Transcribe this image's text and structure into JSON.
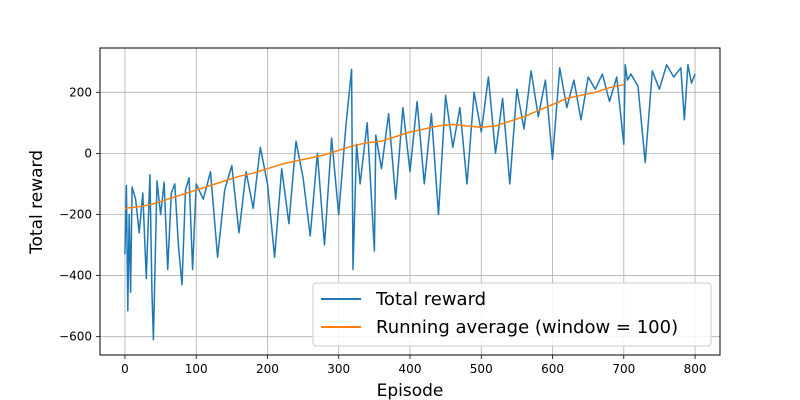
{
  "chart_data": {
    "type": "line",
    "title": "",
    "xlabel": "Episode",
    "ylabel": "Total reward",
    "xlim": [
      -35,
      835
    ],
    "ylim": [
      -660,
      345
    ],
    "xticks": [
      0,
      100,
      200,
      300,
      400,
      500,
      600,
      700,
      800
    ],
    "yticks": [
      -600,
      -400,
      -200,
      0,
      200
    ],
    "grid": true,
    "legend": "lower-right",
    "series": [
      {
        "name": "Total reward",
        "color": "#1f77b4",
        "x": [
          0,
          2,
          4,
          6,
          8,
          10,
          15,
          20,
          25,
          30,
          35,
          38,
          40,
          45,
          50,
          55,
          60,
          65,
          70,
          75,
          80,
          85,
          90,
          95,
          100,
          110,
          120,
          130,
          140,
          150,
          160,
          170,
          180,
          190,
          200,
          210,
          220,
          230,
          240,
          250,
          260,
          270,
          280,
          290,
          300,
          310,
          318,
          320,
          325,
          330,
          340,
          350,
          352,
          360,
          370,
          380,
          390,
          400,
          410,
          420,
          430,
          440,
          450,
          460,
          470,
          480,
          490,
          500,
          510,
          520,
          530,
          540,
          550,
          560,
          570,
          580,
          590,
          600,
          610,
          620,
          630,
          640,
          650,
          660,
          670,
          680,
          690,
          700,
          702,
          705,
          710,
          720,
          730,
          740,
          750,
          760,
          770,
          780,
          785,
          790,
          795,
          800
        ],
        "y": [
          -330,
          -105,
          -515,
          -200,
          -455,
          -110,
          -150,
          -260,
          -130,
          -410,
          -70,
          -460,
          -610,
          -90,
          -200,
          -95,
          -380,
          -130,
          -100,
          -300,
          -430,
          -120,
          -80,
          -380,
          -100,
          -150,
          -60,
          -340,
          -120,
          -40,
          -260,
          -60,
          -180,
          20,
          -100,
          -340,
          -50,
          -230,
          40,
          -80,
          -270,
          0,
          -300,
          50,
          -200,
          90,
          275,
          -380,
          30,
          -100,
          100,
          -320,
          60,
          -50,
          130,
          -150,
          150,
          -60,
          170,
          -100,
          130,
          -200,
          190,
          20,
          150,
          -100,
          200,
          70,
          250,
          0,
          180,
          -100,
          210,
          80,
          270,
          120,
          240,
          -20,
          280,
          150,
          240,
          110,
          250,
          210,
          260,
          170,
          250,
          30,
          290,
          240,
          260,
          220,
          -30,
          270,
          210,
          290,
          250,
          280,
          110,
          290,
          230,
          260
        ]
      },
      {
        "name": "Running average (window = 100)",
        "color": "#ff7f0e",
        "x": [
          0,
          20,
          40,
          60,
          80,
          100,
          120,
          140,
          160,
          180,
          200,
          220,
          240,
          260,
          280,
          300,
          320,
          340,
          360,
          380,
          400,
          420,
          440,
          460,
          480,
          500,
          520,
          540,
          560,
          580,
          600,
          620,
          640,
          660,
          680,
          700
        ],
        "y": [
          -180,
          -175,
          -165,
          -150,
          -135,
          -120,
          -105,
          -90,
          -75,
          -65,
          -50,
          -35,
          -25,
          -15,
          -5,
          10,
          25,
          35,
          40,
          55,
          70,
          80,
          90,
          95,
          90,
          85,
          90,
          105,
          120,
          140,
          160,
          180,
          190,
          200,
          215,
          225
        ]
      }
    ]
  }
}
